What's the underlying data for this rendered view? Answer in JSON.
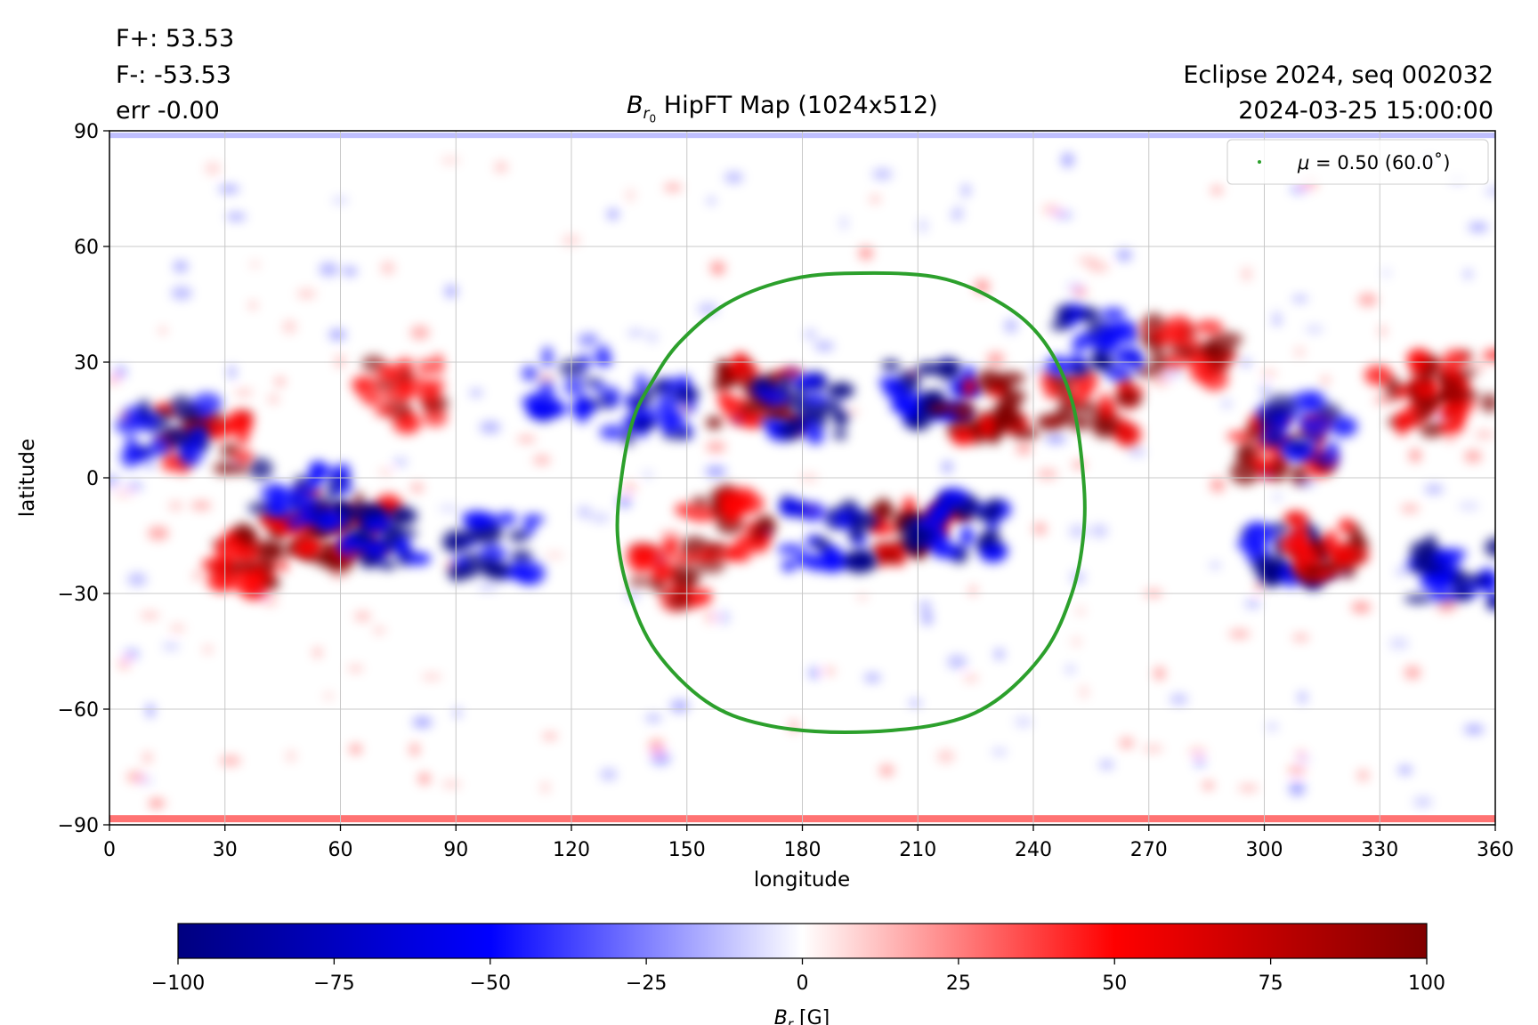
{
  "stats": {
    "f_plus": "F+: 53.53",
    "f_minus": "F-: -53.53",
    "err": "err -0.00"
  },
  "info": {
    "event": "Eclipse 2024, seq 002032",
    "datetime": "2024-03-25 15:00:00"
  },
  "title": {
    "symbol": "B",
    "subscript": "r",
    "subsub": "0",
    "text": "HipFT Map (1024x512)"
  },
  "colors": {
    "negative_max": "#000080",
    "negative": "#0000ff",
    "zero": "#ffffff",
    "positive": "#ff0000",
    "positive_max": "#800000",
    "contour": "#2ca02c",
    "grid": "#c8c8c8"
  },
  "chart_data": {
    "type": "heatmap",
    "colormap": "seismic",
    "xlabel": "longitude",
    "ylabel": "latitude",
    "xlim": [
      0,
      360
    ],
    "ylim": [
      -90,
      90
    ],
    "xticks": [
      0,
      30,
      60,
      90,
      120,
      150,
      180,
      210,
      240,
      270,
      300,
      330,
      360
    ],
    "yticks": [
      -90,
      -60,
      -30,
      0,
      30,
      60,
      90
    ],
    "ytick_labels": [
      "−90",
      "−60",
      "−30",
      "0",
      "30",
      "60",
      "90"
    ],
    "grid": true,
    "legend": {
      "placement": "top-right",
      "label_mu": "μ",
      "label_rest": " = 0.50 (60.0˚)"
    },
    "colorbar": {
      "range": [
        -100,
        100
      ],
      "ticks": [
        -100,
        -75,
        -50,
        -25,
        0,
        25,
        50,
        75,
        100
      ],
      "tick_labels": [
        "−100",
        "−75",
        "−50",
        "−25",
        "0",
        "25",
        "50",
        "75",
        "100"
      ],
      "label_symbol": "B",
      "label_sub": "r",
      "label_unit": " [G]"
    },
    "contour": {
      "mu": 0.5,
      "angle_deg": 60.0,
      "points": [
        [
          191,
          53
        ],
        [
          215,
          52
        ],
        [
          232,
          45
        ],
        [
          243,
          35
        ],
        [
          250,
          20
        ],
        [
          253,
          0
        ],
        [
          253,
          -15
        ],
        [
          250,
          -30
        ],
        [
          243,
          -45
        ],
        [
          230,
          -58
        ],
        [
          215,
          -64
        ],
        [
          191,
          -66
        ],
        [
          170,
          -64
        ],
        [
          155,
          -58
        ],
        [
          142,
          -45
        ],
        [
          135,
          -30
        ],
        [
          132,
          -15
        ],
        [
          133,
          0
        ],
        [
          136,
          15
        ],
        [
          141,
          25
        ],
        [
          148,
          35
        ],
        [
          160,
          45
        ],
        [
          175,
          51
        ]
      ]
    },
    "regions": [
      {
        "lon": 35,
        "lat": -22,
        "sign": 1,
        "strength": 0.9
      },
      {
        "lon": 50,
        "lat": -17,
        "sign": 1,
        "strength": 0.8
      },
      {
        "lon": 62,
        "lat": -12,
        "sign": 1,
        "strength": 0.8
      },
      {
        "lon": 70,
        "lat": -15,
        "sign": -1,
        "strength": 0.95
      },
      {
        "lon": 50,
        "lat": -5,
        "sign": -1,
        "strength": 0.75
      },
      {
        "lon": 25,
        "lat": 10,
        "sign": 1,
        "strength": 0.8
      },
      {
        "lon": 15,
        "lat": 12,
        "sign": -1,
        "strength": 0.7
      },
      {
        "lon": 75,
        "lat": 22,
        "sign": 1,
        "strength": 0.6
      },
      {
        "lon": 100,
        "lat": -18,
        "sign": -1,
        "strength": 0.85
      },
      {
        "lon": 120,
        "lat": 25,
        "sign": -1,
        "strength": 0.6
      },
      {
        "lon": 140,
        "lat": 18,
        "sign": -1,
        "strength": 0.7
      },
      {
        "lon": 168,
        "lat": 22,
        "sign": 1,
        "strength": 0.95
      },
      {
        "lon": 180,
        "lat": 18,
        "sign": -1,
        "strength": 0.85
      },
      {
        "lon": 213,
        "lat": 22,
        "sign": -1,
        "strength": 1.0
      },
      {
        "lon": 227,
        "lat": 18,
        "sign": 1,
        "strength": 1.0
      },
      {
        "lon": 210,
        "lat": -14,
        "sign": 1,
        "strength": 1.0
      },
      {
        "lon": 220,
        "lat": -12,
        "sign": -1,
        "strength": 1.0
      },
      {
        "lon": 186,
        "lat": -15,
        "sign": -1,
        "strength": 0.9
      },
      {
        "lon": 160,
        "lat": -12,
        "sign": 1,
        "strength": 0.8
      },
      {
        "lon": 147,
        "lat": -25,
        "sign": 1,
        "strength": 0.6
      },
      {
        "lon": 255,
        "lat": 18,
        "sign": 1,
        "strength": 0.8
      },
      {
        "lon": 257,
        "lat": 35,
        "sign": -1,
        "strength": 0.85
      },
      {
        "lon": 280,
        "lat": 32,
        "sign": 1,
        "strength": 0.75
      },
      {
        "lon": 305,
        "lat": -20,
        "sign": -1,
        "strength": 0.9
      },
      {
        "lon": 315,
        "lat": -18,
        "sign": 1,
        "strength": 0.95
      },
      {
        "lon": 305,
        "lat": 8,
        "sign": 1,
        "strength": 0.85
      },
      {
        "lon": 310,
        "lat": 12,
        "sign": -1,
        "strength": 0.6
      },
      {
        "lon": 340,
        "lat": 20,
        "sign": 1,
        "strength": 0.85
      },
      {
        "lon": 350,
        "lat": -25,
        "sign": -1,
        "strength": 0.9
      },
      {
        "lon": 350,
        "lat": 25,
        "sign": 1,
        "strength": 0.7
      }
    ]
  }
}
